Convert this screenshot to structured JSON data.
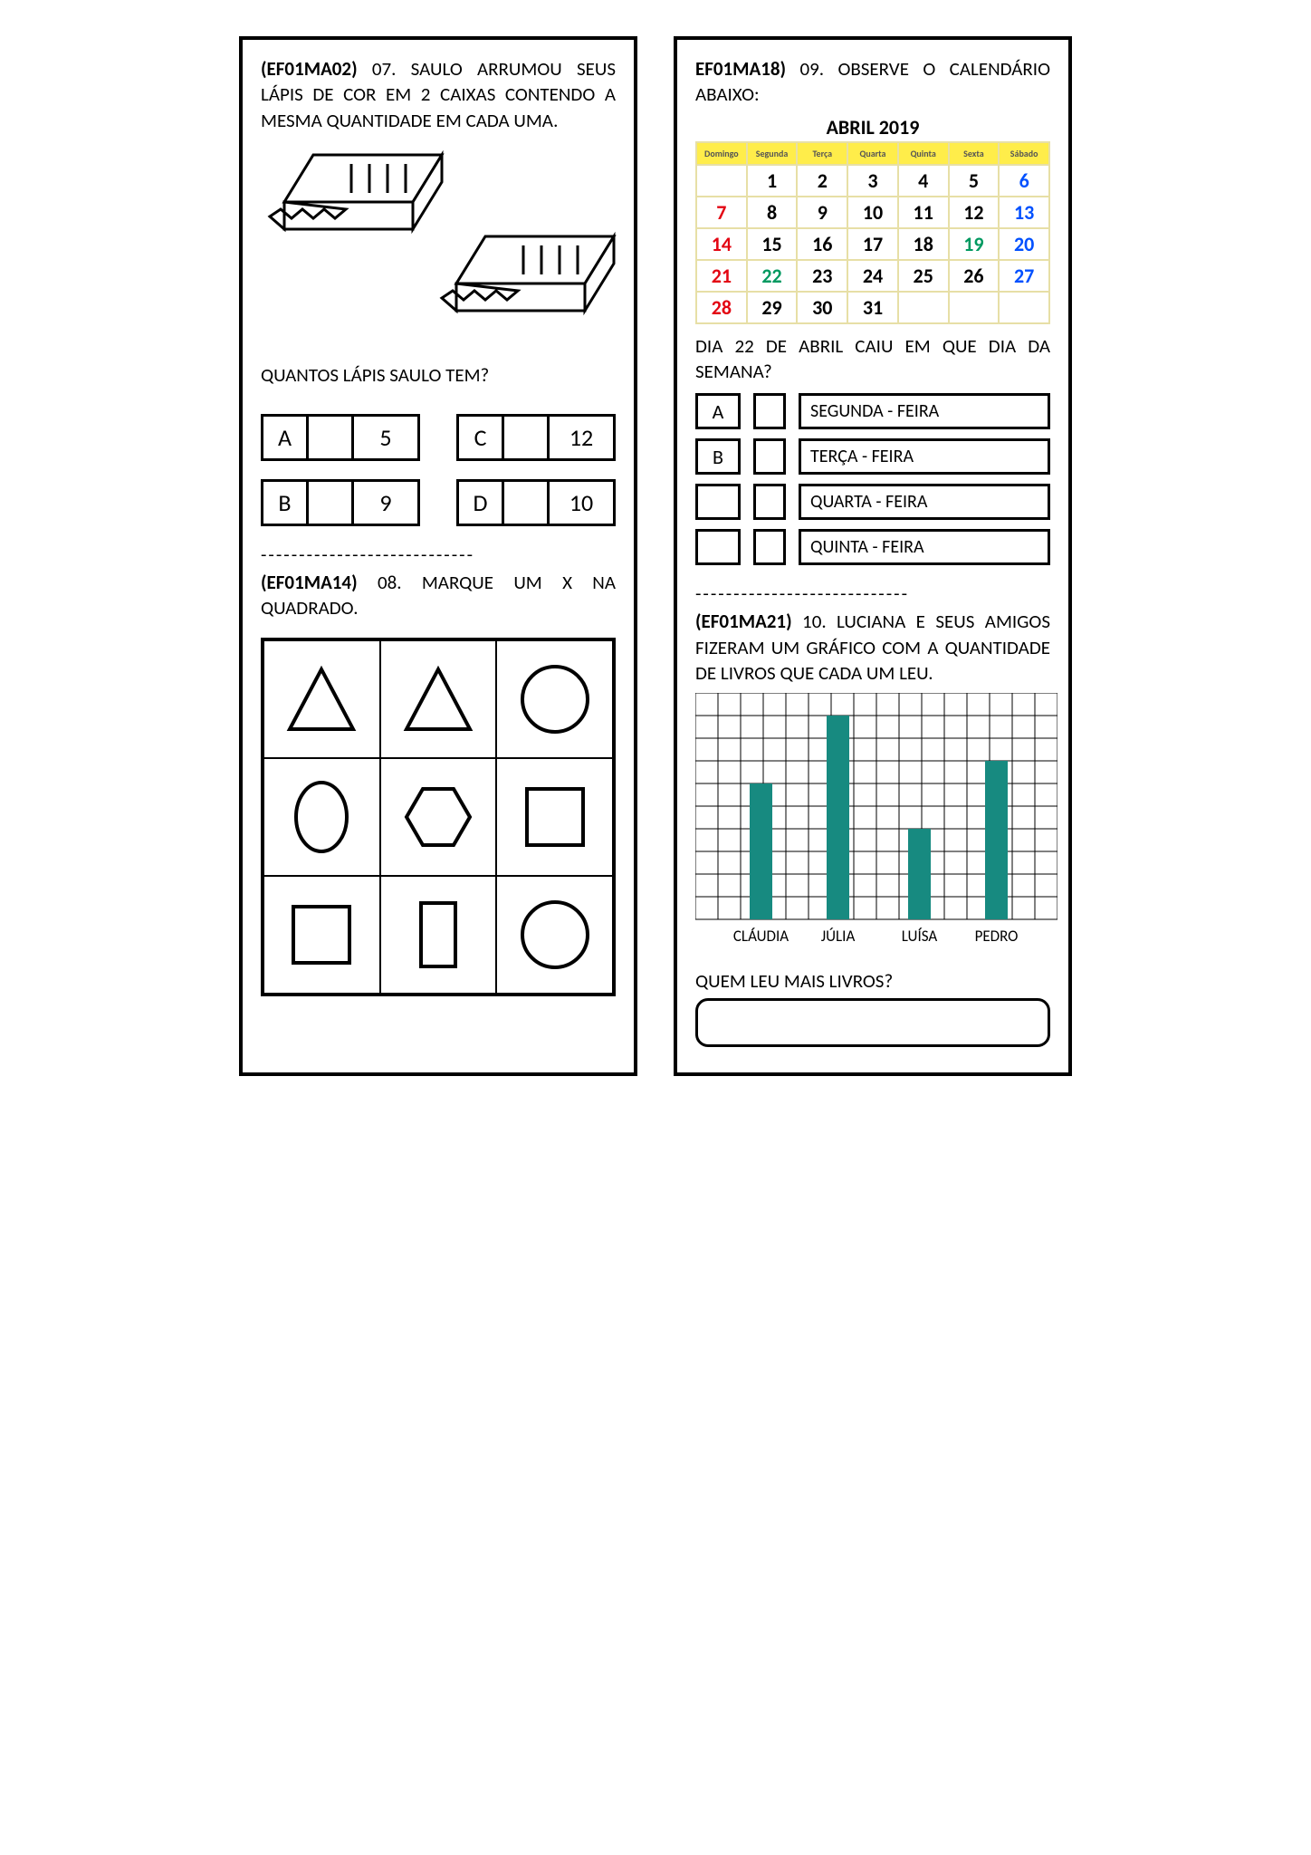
{
  "q7": {
    "code": "(EF01MA02)",
    "text": "07. SAULO ARRUMOU SEUS LÁPIS DE COR EM 2 CAIXAS CONTENDO A MESMA QUANTIDADE EM CADA UMA.",
    "sub": "QUANTOS LÁPIS SAULO TEM?",
    "options": [
      {
        "label": "A",
        "value": "5"
      },
      {
        "label": "B",
        "value": "9"
      },
      {
        "label": "C",
        "value": "12"
      },
      {
        "label": "D",
        "value": "10"
      }
    ]
  },
  "q8": {
    "code": "(EF01MA14)",
    "text": "08. MARQUE UM X NA QUADRADO.",
    "shapes": [
      "triangle",
      "triangle",
      "circle",
      "ellipse",
      "hexagon",
      "square",
      "square",
      "rect",
      "circle"
    ]
  },
  "q9": {
    "code": "EF01MA18)",
    "text": "09. OBSERVE O CALENDÁRIO ABAIXO:",
    "sub": "DIA 22 DE ABRIL CAIU EM QUE DIA DA SEMANA?",
    "options": [
      {
        "label": "A",
        "text": "SEGUNDA - FEIRA"
      },
      {
        "label": "B",
        "text": "TERÇA - FEIRA"
      },
      {
        "label": "",
        "text": "QUARTA - FEIRA"
      },
      {
        "label": "",
        "text": "QUINTA - FEIRA"
      }
    ]
  },
  "calendar": {
    "title": "ABRIL 2019",
    "header_bg": "#ffed4a",
    "border": "#e7dfa6",
    "colors": {
      "sun": "#e30613",
      "sat": "#0050ff",
      "hol": "#009960",
      "default": "#000000"
    },
    "days_header": [
      "Domingo",
      "Segunda",
      "Terça",
      "Quarta",
      "Quinta",
      "Sexta",
      "Sábado"
    ],
    "cells": [
      {
        "n": "",
        "c": ""
      },
      {
        "n": "1",
        "c": ""
      },
      {
        "n": "2",
        "c": ""
      },
      {
        "n": "3",
        "c": ""
      },
      {
        "n": "4",
        "c": ""
      },
      {
        "n": "5",
        "c": ""
      },
      {
        "n": "6",
        "c": "sat"
      },
      {
        "n": "7",
        "c": "sun"
      },
      {
        "n": "8",
        "c": ""
      },
      {
        "n": "9",
        "c": ""
      },
      {
        "n": "10",
        "c": ""
      },
      {
        "n": "11",
        "c": ""
      },
      {
        "n": "12",
        "c": ""
      },
      {
        "n": "13",
        "c": "sat"
      },
      {
        "n": "14",
        "c": "sun"
      },
      {
        "n": "15",
        "c": ""
      },
      {
        "n": "16",
        "c": ""
      },
      {
        "n": "17",
        "c": ""
      },
      {
        "n": "18",
        "c": ""
      },
      {
        "n": "19",
        "c": "hol"
      },
      {
        "n": "20",
        "c": "sat"
      },
      {
        "n": "21",
        "c": "sun"
      },
      {
        "n": "22",
        "c": "hol"
      },
      {
        "n": "23",
        "c": ""
      },
      {
        "n": "24",
        "c": ""
      },
      {
        "n": "25",
        "c": ""
      },
      {
        "n": "26",
        "c": ""
      },
      {
        "n": "27",
        "c": "sat"
      },
      {
        "n": "28",
        "c": "sun"
      },
      {
        "n": "29",
        "c": ""
      },
      {
        "n": "30",
        "c": ""
      },
      {
        "n": "31",
        "c": ""
      },
      {
        "n": "",
        "c": ""
      },
      {
        "n": "",
        "c": ""
      },
      {
        "n": "",
        "c": ""
      }
    ]
  },
  "q10": {
    "code": "(EF01MA21)",
    "text": "10. LUCIANA E SEUS AMIGOS FIZERAM UM GRÁFICO COM A QUANTIDADE DE LIVROS QUE CADA UM LEU.",
    "sub": "QUEM LEU MAIS LIVROS?"
  },
  "chart": {
    "type": "bar",
    "grid_cols": 16,
    "grid_rows": 10,
    "grid_color": "#000000",
    "background_color": "#ffffff",
    "bar_color": "#178a80",
    "label_fontsize": 17,
    "bars": [
      {
        "label": "CLÁUDIA",
        "x": 2.4,
        "width": 1,
        "height": 6
      },
      {
        "label": "JÚLIA",
        "x": 5.8,
        "width": 1,
        "height": 9
      },
      {
        "label": "LUÍSA",
        "x": 9.4,
        "width": 1,
        "height": 4
      },
      {
        "label": "PEDRO",
        "x": 12.8,
        "width": 1,
        "height": 7
      }
    ]
  },
  "separator": "----------------------------"
}
